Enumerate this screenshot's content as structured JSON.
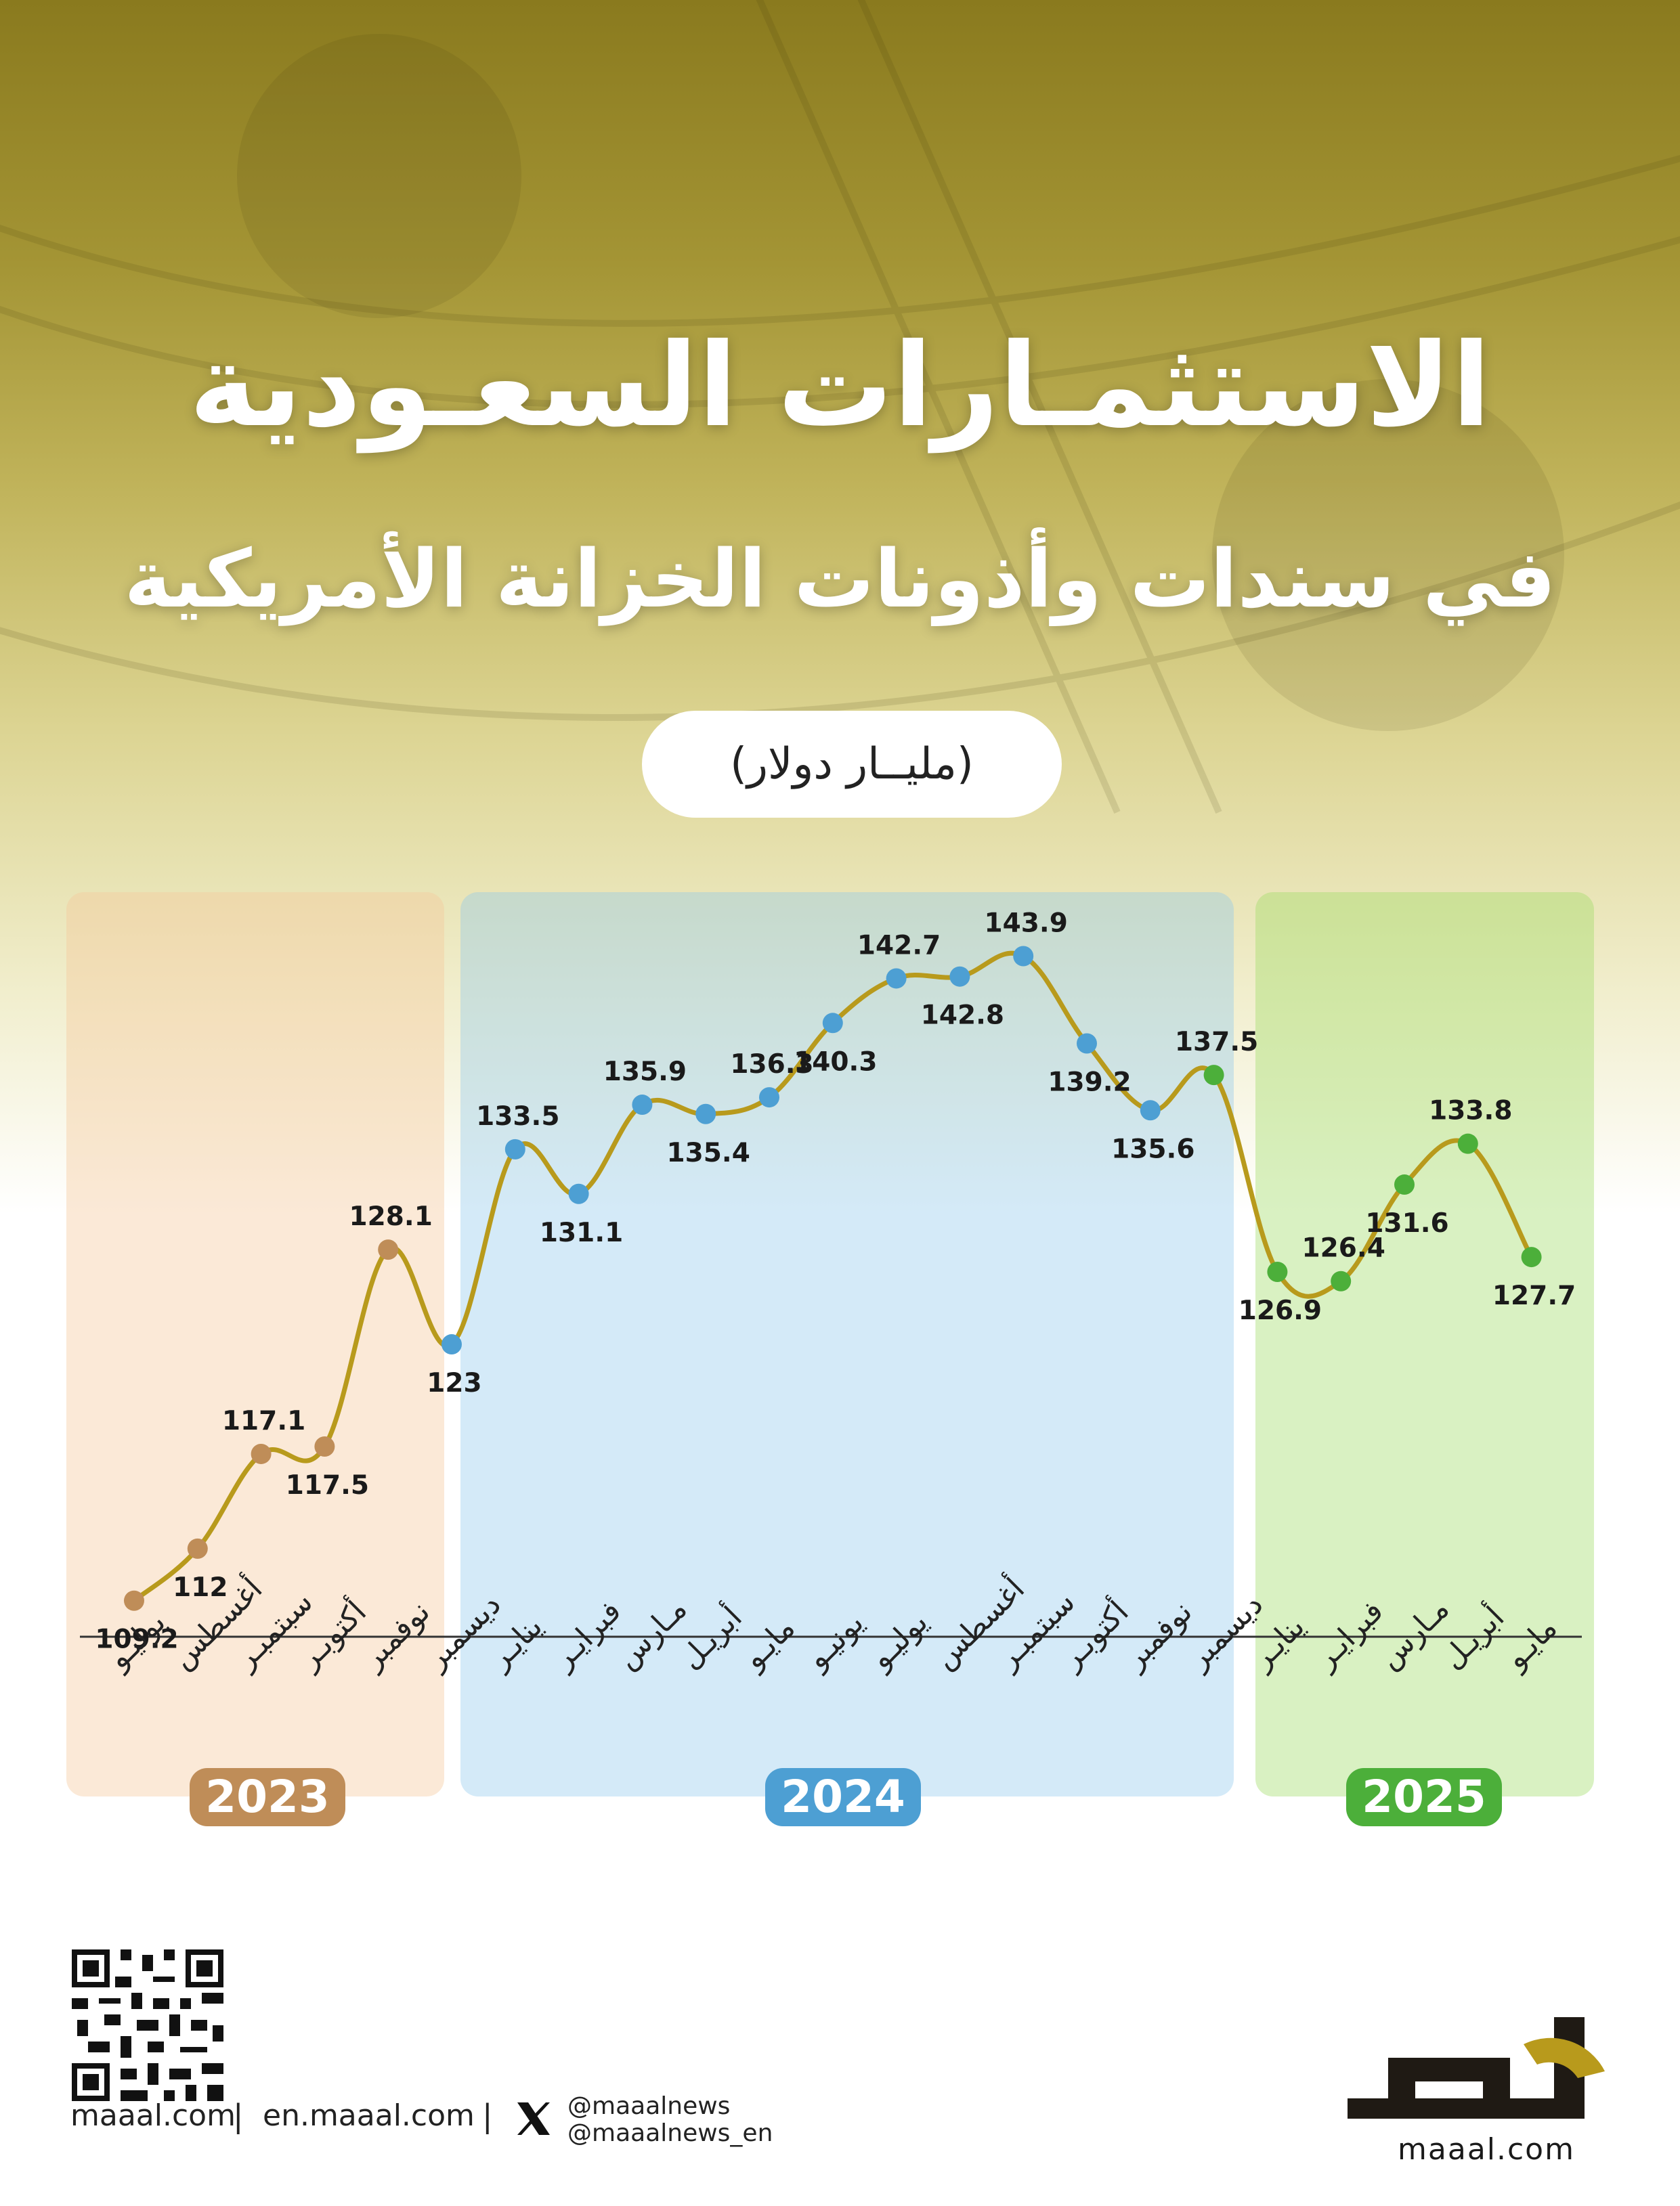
{
  "header": {
    "title": "الاستثمـارات السعـودية",
    "subtitle": "في سندات وأذونات الخزانة الأمريكية",
    "unit": "(مليــار دولار)"
  },
  "colors": {
    "accent_2023": "#bf8d58",
    "accent_2024": "#4d9fd3",
    "accent_2025": "#4caf3a",
    "line": "#b89a1c",
    "background_top": "#8a7a1e"
  },
  "chart_data": {
    "type": "line",
    "title": "الاستثمـارات السعـودية في سندات وأذونات الخزانة الأمريكية",
    "ylabel": "(مليــار دولار)",
    "xlabel": "",
    "grid": false,
    "ylim": [
      105,
      148
    ],
    "categories": [
      "يوليـو",
      "أغسطس",
      "سبتمبـر",
      "أكتوبـر",
      "نوفمبر",
      "ديسمبر",
      "ينايـر",
      "فبرايـر",
      "مـارس",
      "أبريـل",
      "مايـو",
      "يونيـو",
      "يوليـو",
      "أغسطس",
      "سبتمبـر",
      "أكتوبـر",
      "نوفمبر",
      "ديسمبر",
      "ينايـر",
      "فبرايـر",
      "مـارس",
      "أبريـل",
      "مايـو"
    ],
    "values": [
      109.2,
      112,
      117.1,
      117.5,
      128.1,
      123,
      133.5,
      131.1,
      135.9,
      135.4,
      136.3,
      140.3,
      142.7,
      142.8,
      143.9,
      139.2,
      135.6,
      137.5,
      126.9,
      126.4,
      131.6,
      133.8,
      127.7
    ],
    "value_labels": [
      "109.2",
      "112",
      "117.1",
      "117.5",
      "128.1",
      "123",
      "133.5",
      "131.1",
      "135.9",
      "135.4",
      "136.3",
      "140.3",
      "142.7",
      "142.8",
      "143.9",
      "139.2",
      "135.6",
      "137.5",
      "126.9",
      "126.4",
      "131.6",
      "133.8",
      "127.7"
    ],
    "label_side": [
      "below",
      "below",
      "above",
      "below",
      "above",
      "below",
      "above",
      "below",
      "above",
      "below",
      "above",
      "below",
      "above",
      "below",
      "above",
      "below",
      "below",
      "above",
      "below",
      "above",
      "below",
      "above",
      "below"
    ],
    "years": [
      {
        "label": "2023",
        "start": 0,
        "end": 4
      },
      {
        "label": "2024",
        "start": 5,
        "end": 16
      },
      {
        "label": "2025",
        "start": 17,
        "end": 22
      }
    ]
  },
  "footer": {
    "site_ar": "maaal.com",
    "site_en": "en.maaal.com",
    "sep": "|",
    "handle_1": "@maaalnews",
    "handle_2": "@maaalnews_en",
    "brand_url": "maaal.com"
  }
}
